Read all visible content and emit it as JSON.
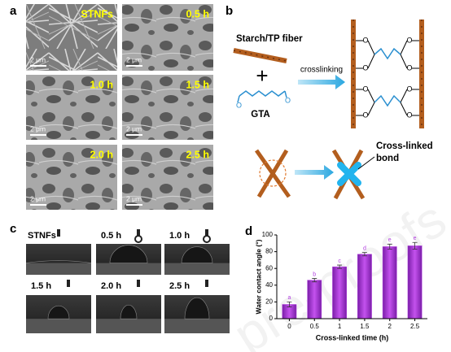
{
  "panel_labels": [
    "a",
    "b",
    "c",
    "d"
  ],
  "sem": {
    "images": [
      {
        "label": "STNFs",
        "scale": "2 μm"
      },
      {
        "label": "0.5 h",
        "scale": "2 μm"
      },
      {
        "label": "1.0 h",
        "scale": "2 μm"
      },
      {
        "label": "1.5 h",
        "scale": "2 μm"
      },
      {
        "label": "2.0 h",
        "scale": "2 μm"
      },
      {
        "label": "2.5 h",
        "scale": "2 μm"
      }
    ]
  },
  "scheme": {
    "fiber_label": "Starch/TP fiber",
    "plus": "+",
    "reagent": "GTA",
    "arrow_label": "crosslinking",
    "atom": "O",
    "bond_label": [
      "Cross-linked",
      "bond"
    ]
  },
  "contact_angle": {
    "images": [
      "STNFs",
      "0.5 h",
      "1.0 h",
      "1.5 h",
      "2.0 h",
      "2.5 h"
    ]
  },
  "watermark": "pre-proofs",
  "chart_data": {
    "type": "bar",
    "x_label": "Cross-linked time (h)",
    "y_label": "Water contact angle (°)",
    "categories": [
      "0",
      "0.5",
      "1",
      "1.5",
      "2",
      "2.5"
    ],
    "values": [
      17,
      46,
      62,
      77,
      86,
      87
    ],
    "errors": [
      3,
      2,
      2,
      2,
      3,
      4
    ],
    "significance": [
      "a",
      "b",
      "c",
      "d",
      "e",
      "e"
    ],
    "color": "#b23fe0",
    "ylim": [
      0,
      100
    ],
    "yticks": [
      0,
      20,
      40,
      60,
      80,
      100
    ]
  }
}
